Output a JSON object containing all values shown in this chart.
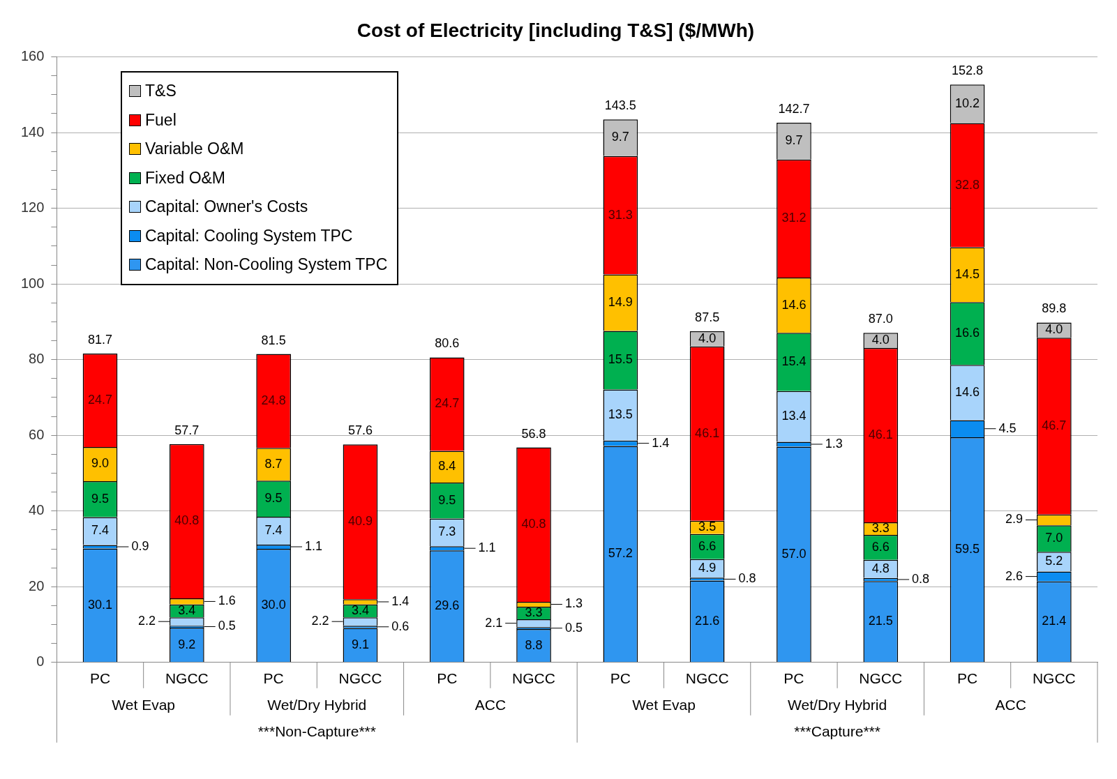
{
  "chart_data": {
    "type": "bar",
    "title": "Cost of Electricity [including T&S] ($/MWh)",
    "stacked": true,
    "legend": "top left",
    "grid": "y",
    "categories": [
      "PC",
      "NGCC",
      "PC",
      "NGCC",
      "PC",
      "NGCC",
      "PC",
      "NGCC",
      "PC",
      "NGCC",
      "PC",
      "NGCC"
    ],
    "annotations": [
      "Wet Evap",
      "Wet/Dry Hybrid",
      "ACC",
      "Wet Evap",
      "Wet/Dry Hybrid",
      "ACC",
      "***Non-Capture***",
      "***Capture***"
    ],
    "ylim": [
      0,
      160
    ],
    "yticks": [
      0,
      {
        "value": 5,
        "label": null
      },
      {
        "value": 10,
        "label": null
      },
      {
        "value": 15,
        "label": null
      },
      20,
      {
        "value": 25,
        "label": null
      },
      {
        "value": 30,
        "label": null
      },
      {
        "value": 35,
        "label": null
      },
      40,
      {
        "value": 45,
        "label": null
      },
      {
        "value": 50,
        "label": null
      },
      {
        "value": 55,
        "label": null
      },
      60,
      {
        "value": 65,
        "label": null
      },
      {
        "value": 70,
        "label": null
      },
      {
        "value": 75,
        "label": null
      },
      80,
      {
        "value": 85,
        "label": null
      },
      {
        "value": 90,
        "label": null
      },
      {
        "value": 95,
        "label": null
      },
      100,
      {
        "value": 105,
        "label": null
      },
      {
        "value": 110,
        "label": null
      },
      {
        "value": 115,
        "label": null
      },
      120,
      {
        "value": 125,
        "label": null
      },
      {
        "value": 130,
        "label": null
      },
      {
        "value": 135,
        "label": null
      },
      140,
      {
        "value": 145,
        "label": null
      },
      {
        "value": 150,
        "label": null
      },
      {
        "value": 155,
        "label": null
      },
      160
    ],
    "series": [
      {
        "name": "Capital: Non-Cooling System TPC",
        "color": "#2f96f0",
        "values": [
          30.1,
          9.2,
          30.0,
          9.1,
          29.6,
          8.8,
          57.2,
          21.6,
          57.0,
          21.5,
          59.5,
          21.4
        ],
        "value_labels": [
          "30.1",
          "9.2",
          "30.0",
          "9.1",
          "29.6",
          "8.8",
          "57.2",
          "21.6",
          "57.0",
          "21.5",
          "59.5",
          "21.4"
        ]
      },
      {
        "name": "Capital: Cooling System TPC",
        "color": "#0b8cf0",
        "values": [
          0.9,
          0.5,
          1.1,
          0.6,
          1.1,
          0.5,
          1.4,
          0.8,
          1.3,
          0.8,
          4.5,
          2.6
        ],
        "value_labels": [
          "0.9",
          "0.5",
          "1.1",
          "0.6",
          "1.1",
          "0.5",
          "1.4",
          "0.8",
          "1.3",
          "0.8",
          "4.5",
          "2.6"
        ]
      },
      {
        "name": "Capital: Owner's Costs",
        "color": "#a8d4fb",
        "values": [
          7.4,
          2.2,
          7.4,
          2.2,
          7.3,
          2.1,
          13.5,
          4.9,
          13.4,
          4.8,
          14.6,
          5.2
        ],
        "value_labels": [
          "7.4",
          "2.2",
          "7.4",
          "2.2",
          "7.3",
          "2.1",
          "13.5",
          "4.9",
          "13.4",
          "4.8",
          "14.6",
          "5.2"
        ]
      },
      {
        "name": "Fixed O&M",
        "color": "#00b050",
        "values": [
          9.5,
          3.4,
          9.5,
          3.4,
          9.5,
          3.3,
          15.5,
          6.6,
          15.4,
          6.6,
          16.6,
          7.0
        ],
        "value_labels": [
          "9.5",
          "3.4",
          "9.5",
          "3.4",
          "9.5",
          "3.3",
          "15.5",
          "6.6",
          "15.4",
          "6.6",
          "16.6",
          "7.0"
        ]
      },
      {
        "name": "Variable O&M",
        "color": "#ffc000",
        "values": [
          9.0,
          1.6,
          8.7,
          1.4,
          8.4,
          1.3,
          14.9,
          3.5,
          14.6,
          3.3,
          14.5,
          2.9
        ],
        "value_labels": [
          "9.0",
          "1.6",
          "8.7",
          "1.4",
          "8.4",
          "1.3",
          "14.9",
          "3.5",
          "14.6",
          "3.3",
          "14.5",
          "2.9"
        ]
      },
      {
        "name": "Fuel",
        "color": "#ff0000",
        "values": [
          24.7,
          40.8,
          24.8,
          40.9,
          24.7,
          40.8,
          31.3,
          46.1,
          31.2,
          46.1,
          32.8,
          46.7
        ],
        "value_labels": [
          "24.7",
          "40.8",
          "24.8",
          "40.9",
          "24.7",
          "40.8",
          "31.3",
          "46.1",
          "31.2",
          "46.1",
          "32.8",
          "46.7"
        ]
      },
      {
        "name": "T&S",
        "color": "#bfbfbf",
        "values": [
          null,
          null,
          null,
          null,
          null,
          null,
          9.7,
          4.0,
          9.7,
          4.0,
          10.2,
          4.0
        ],
        "value_labels": [
          null,
          null,
          null,
          null,
          null,
          null,
          "9.7",
          "4.0",
          "9.7",
          "4.0",
          "10.2",
          "4.0"
        ]
      }
    ],
    "totals": [
      "81.7",
      "57.7",
      "81.5",
      "57.6",
      "80.6",
      "56.8",
      "143.5",
      "87.5",
      "142.7",
      "87.0",
      "152.8",
      "89.8"
    ]
  }
}
